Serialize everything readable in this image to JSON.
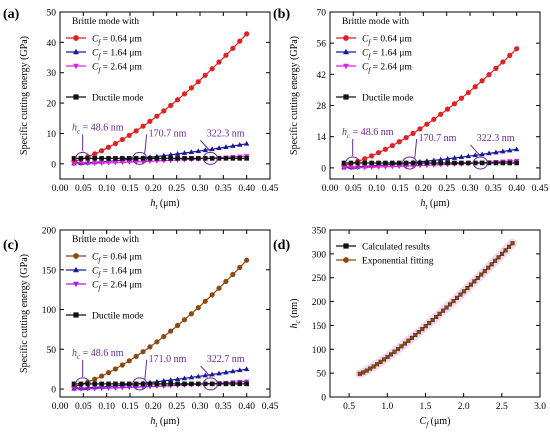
{
  "colors": {
    "red": "#dd2222",
    "blue": "#1a1a9a",
    "magenta": "#dd22dd",
    "brown": "#8a4a12",
    "black": "#111111",
    "annotation": "#6a2a96"
  },
  "chart_data": [
    {
      "panel": "(a)",
      "type": "line",
      "xlabel_main": "h",
      "xlabel_sub": "t",
      "xlabel_unit": " (μm)",
      "ylabel": "Specific cutting energy (GPa)",
      "xlim": [
        0,
        0.45
      ],
      "ylim": [
        -5,
        50
      ],
      "xticks": [
        "0.00",
        "0.05",
        "0.10",
        "0.15",
        "0.20",
        "0.25",
        "0.30",
        "0.35",
        "0.40",
        "0.45"
      ],
      "yticks": [
        "0",
        "10",
        "20",
        "30",
        "40",
        "50"
      ],
      "legend_title": "Brittle mode with",
      "legend_ductile": "Ductile mode",
      "series": [
        {
          "name": "C_f = 0.64 μm",
          "label_var": "C",
          "label_sub": "f",
          "label_val": " = 0.64 μm",
          "color": "#dd2222",
          "marker": "circle",
          "coef": 42.8,
          "exp": 1.53
        },
        {
          "name": "C_f = 1.64 μm",
          "label_var": "C",
          "label_sub": "f",
          "label_val": " = 1.64 μm",
          "color": "#1a1a9a",
          "marker": "triangle-up",
          "coef": 6.6,
          "exp": 1.53
        },
        {
          "name": "C_f = 2.64 μm",
          "label_var": "C",
          "label_sub": "f",
          "label_val": " = 2.64 μm",
          "color": "#dd22dd",
          "marker": "triangle-down",
          "coef": 2.55,
          "exp": 1.53
        },
        {
          "name": "Ductile mode",
          "color": "#111111",
          "marker": "square",
          "flat": 1.8
        }
      ],
      "annotations": [
        "h",
        "c",
        " = 48.6 nm",
        "170.7 nm",
        "322.3 nm"
      ]
    },
    {
      "panel": "(b)",
      "type": "line",
      "xlabel_main": "h",
      "xlabel_sub": "t",
      "xlabel_unit": " (μm)",
      "ylabel": "Specific cutting energy (GPa)",
      "xlim": [
        0,
        0.45
      ],
      "ylim": [
        -5,
        70
      ],
      "xticks": [
        "0.00",
        "0.05",
        "0.10",
        "0.15",
        "0.20",
        "0.25",
        "0.30",
        "0.35",
        "0.40",
        "0.45"
      ],
      "yticks": [
        "0",
        "14",
        "28",
        "42",
        "56",
        "70"
      ],
      "legend_title": "Brittle mode with",
      "legend_ductile": "Ductile mode",
      "series": [
        {
          "name": "C_f = 0.64 μm",
          "label_var": "C",
          "label_sub": "f",
          "label_val": " = 0.64 μm",
          "color": "#dd2222",
          "marker": "circle",
          "coef": 53.5,
          "exp": 1.53
        },
        {
          "name": "C_f = 1.64 μm",
          "label_var": "C",
          "label_sub": "f",
          "label_val": " = 1.64 μm",
          "color": "#1a1a9a",
          "marker": "triangle-up",
          "coef": 8.3,
          "exp": 1.53
        },
        {
          "name": "C_f = 2.64 μm",
          "label_var": "C",
          "label_sub": "f",
          "label_val": " = 2.64 μm",
          "color": "#dd22dd",
          "marker": "triangle-down",
          "coef": 3.2,
          "exp": 1.53
        },
        {
          "name": "Ductile mode",
          "color": "#111111",
          "marker": "square",
          "flat": 2.2
        }
      ],
      "annotations": [
        "h",
        "c",
        " = 48.6 nm",
        "170.7 nm",
        "322.3 nm"
      ]
    },
    {
      "panel": "(c)",
      "type": "line",
      "xlabel_main": "h",
      "xlabel_sub": "t",
      "xlabel_unit": " (μm)",
      "ylabel": "Specific cutting energy (GPa)",
      "xlim": [
        0,
        0.45
      ],
      "ylim": [
        -10,
        200
      ],
      "xticks": [
        "0.00",
        "0.05",
        "0.10",
        "0.15",
        "0.20",
        "0.25",
        "0.30",
        "0.35",
        "0.40",
        "0.45"
      ],
      "yticks": [
        "0",
        "50",
        "100",
        "150",
        "200"
      ],
      "legend_title": "Brittle mode with",
      "legend_ductile": "Ductile mode",
      "series": [
        {
          "name": "C_f = 0.64 μm",
          "label_var": "C",
          "label_sub": "f",
          "label_val": " = 0.64 μm",
          "color": "#8a4a12",
          "marker": "circle",
          "coef": 162,
          "exp": 1.53
        },
        {
          "name": "C_f = 1.64 μm",
          "label_var": "C",
          "label_sub": "f",
          "label_val": " = 1.64 μm",
          "color": "#1a1a9a",
          "marker": "triangle-up",
          "coef": 25,
          "exp": 1.53
        },
        {
          "name": "C_f = 2.64 μm",
          "label_var": "C",
          "label_sub": "f",
          "label_val": " = 2.64 μm",
          "color": "#aa22dd",
          "marker": "triangle-down",
          "coef": 9.5,
          "exp": 1.53
        },
        {
          "name": "Ductile mode",
          "color": "#111111",
          "marker": "square",
          "flat": 6.5
        }
      ],
      "annotations": [
        "h",
        "c",
        " = 48.6 nm",
        "171.0 nm",
        "322.7 nm"
      ]
    },
    {
      "panel": "(d)",
      "type": "line",
      "xlabel_main": "C",
      "xlabel_sub": "f",
      "xlabel_unit": " (μm)",
      "ylabel_main": "h",
      "ylabel_sub": "c",
      "ylabel_unit": " (nm)",
      "xlim": [
        0.25,
        3.0
      ],
      "ylim": [
        0,
        350
      ],
      "xticks": [
        "0.5",
        "1.0",
        "1.5",
        "2.0",
        "2.5",
        "3.0"
      ],
      "yticks": [
        "0",
        "50",
        "100",
        "150",
        "200",
        "250",
        "300",
        "350"
      ],
      "series": [
        {
          "name": "Calculated results",
          "color": "#111111",
          "marker": "square"
        },
        {
          "name": "Exponential fitting",
          "color": "#8a4a12",
          "marker": "circle"
        }
      ],
      "curve": {
        "x_start": 0.64,
        "x_end": 2.64,
        "y_start": 48.6,
        "y_end": 322.3,
        "power": 1.2
      }
    }
  ]
}
